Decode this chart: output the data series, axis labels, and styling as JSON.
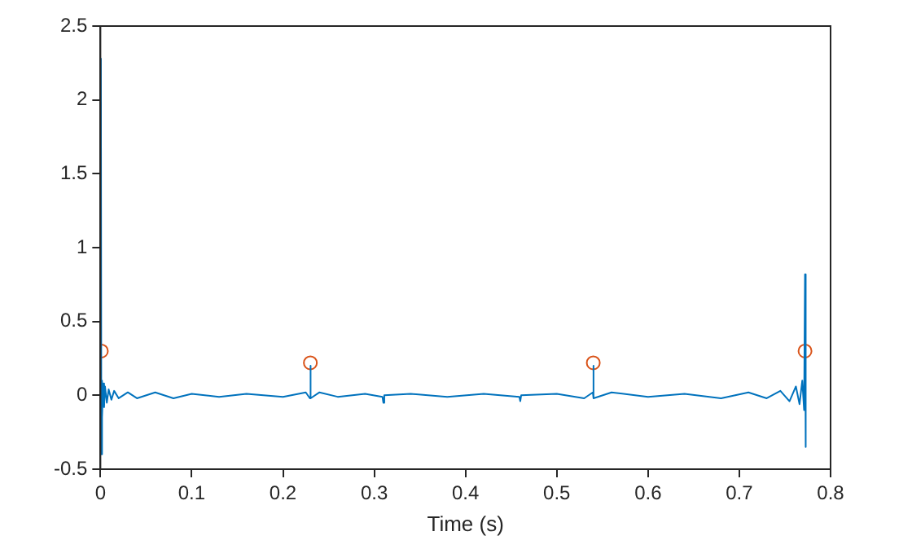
{
  "chart_data": {
    "type": "line",
    "xlabel": "Time (s)",
    "xlim": [
      0,
      0.8
    ],
    "xticks": [
      0,
      0.1,
      0.2,
      0.3,
      0.4,
      0.5,
      0.6,
      0.7,
      0.8
    ],
    "ylim": [
      -0.5,
      2.5
    ],
    "yticks": [
      -0.5,
      0,
      0.5,
      1,
      1.5,
      2,
      2.5
    ],
    "grid": false,
    "legend": false,
    "series": [
      {
        "color": "#0072bd",
        "marker": "none",
        "x": [
          0,
          0.0005,
          0.001,
          0.0015,
          0.002,
          0.003,
          0.004,
          0.005,
          0.007,
          0.009,
          0.012,
          0.015,
          0.02,
          0.03,
          0.04,
          0.06,
          0.08,
          0.1,
          0.13,
          0.16,
          0.2,
          0.225,
          0.2295,
          0.23,
          0.2305,
          0.24,
          0.26,
          0.29,
          0.309,
          0.31,
          0.311,
          0.34,
          0.38,
          0.42,
          0.459,
          0.46,
          0.461,
          0.5,
          0.53,
          0.5395,
          0.54,
          0.5405,
          0.56,
          0.6,
          0.64,
          0.68,
          0.71,
          0.73,
          0.745,
          0.755,
          0.762,
          0.766,
          0.769,
          0.771,
          0.772,
          0.7725,
          0.773
        ],
        "values": [
          0,
          2.28,
          -0.4,
          0.1,
          -0.15,
          0.08,
          -0.08,
          0.06,
          -0.05,
          0.04,
          -0.03,
          0.03,
          -0.02,
          0.02,
          -0.02,
          0.02,
          -0.02,
          0.01,
          -0.01,
          0.01,
          -0.01,
          0.02,
          -0.02,
          0.2,
          -0.02,
          0.02,
          -0.01,
          0.01,
          -0.01,
          -0.05,
          0,
          0.01,
          -0.01,
          0.01,
          -0.01,
          -0.04,
          0,
          0.01,
          -0.02,
          0.02,
          0.2,
          -0.02,
          0.02,
          -0.01,
          0.01,
          -0.02,
          0.02,
          -0.02,
          0.03,
          -0.04,
          0.06,
          -0.06,
          0.1,
          -0.1,
          0.82,
          -0.35,
          0
        ]
      },
      {
        "type": "scatter",
        "color": "#d95319",
        "marker": "circle",
        "x": [
          0.001,
          0.23,
          0.54,
          0.772
        ],
        "values": [
          0.3,
          0.22,
          0.22,
          0.3
        ]
      }
    ]
  }
}
